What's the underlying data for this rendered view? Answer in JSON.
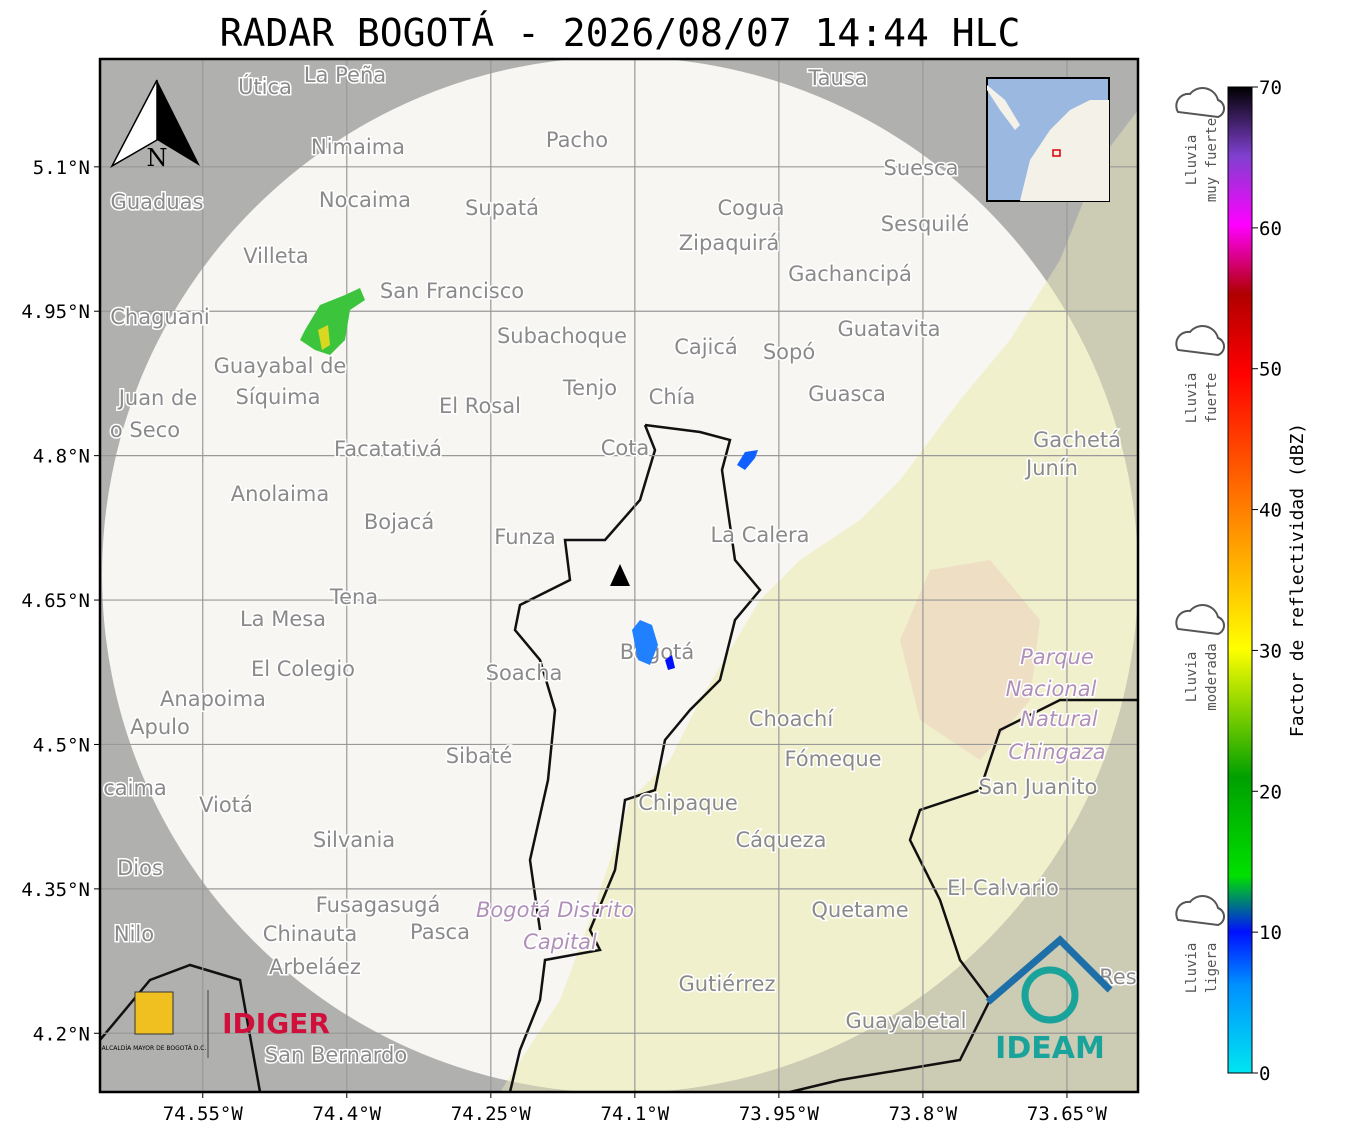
{
  "title": "RADAR BOGOTÁ - 2026/08/07 14:44 HLC",
  "map": {
    "lonlim": [
      -74.657,
      -73.576
    ],
    "latlim": [
      4.139,
      5.212
    ],
    "lat_ticks": [
      {
        "value": 5.1,
        "label": "5.1°N"
      },
      {
        "value": 4.95,
        "label": "4.95°N"
      },
      {
        "value": 4.8,
        "label": "4.8°N"
      },
      {
        "value": 4.65,
        "label": "4.65°N"
      },
      {
        "value": 4.5,
        "label": "4.5°N"
      },
      {
        "value": 4.35,
        "label": "4.35°N"
      },
      {
        "value": 4.2,
        "label": "4.2°N"
      }
    ],
    "lon_ticks": [
      {
        "value": -74.55,
        "label": "74.55°W"
      },
      {
        "value": -74.4,
        "label": "74.4°W"
      },
      {
        "value": -74.25,
        "label": "74.25°W"
      },
      {
        "value": -74.1,
        "label": "74.1°W"
      },
      {
        "value": -73.95,
        "label": "73.95°W"
      },
      {
        "value": -73.8,
        "label": "73.8°W"
      },
      {
        "value": -73.65,
        "label": "73.65°W"
      }
    ],
    "north": "N",
    "places": [
      "La Peña",
      "Útica",
      "Tausa",
      "Pacho",
      "Nimaima",
      "Guaduas",
      "Nocaima",
      "Supatá",
      "Cogua",
      "Suesca",
      "Sesquilé",
      "Zipaquirá",
      "Villeta",
      "Gachancipá",
      "San Francisco",
      "Chaguani",
      "Subachoque",
      "Guatavita",
      "Cajicá",
      "Sopó",
      "Guayabal de",
      "Síquima",
      "Tenjo",
      "Chía",
      "Guasca",
      "Juan de",
      "o Seco",
      "El Rosal",
      "Facatativá",
      "Cota",
      "Gachetá",
      "Junín",
      "Anolaima",
      "Bojacá",
      "Funza",
      "La Calera",
      "Tena",
      "La Mesa",
      "El Colegio",
      "Soacha",
      "Bogotá",
      "Parque",
      "Nacional",
      "Natural",
      "Chingaza",
      "Anapoima",
      "Apulo",
      "Choachí",
      "Fómeque",
      "Sibaté",
      "San Juanito",
      "caima",
      "Viotá",
      "Chipaque",
      "Cáqueza",
      "Silvania",
      "Dios",
      "El Calvario",
      "Fusagasugá",
      "Bogotá Distrito",
      "Capital",
      "Quetame",
      "Nilo",
      "Chinauta",
      "Pasca",
      "Arbeláez",
      "Gutiérrez",
      "Guayabetal",
      "San Bernardo",
      "Res"
    ]
  },
  "logos": {
    "alcaldia": "ALCALDÍA MAYOR DE BOGOTÁ D.C.",
    "idiger": "IDIGER",
    "ideam": "IDEAM"
  },
  "colorbar": {
    "label": "Factor de reflectividad (dBZ)",
    "lim": [
      0,
      70
    ],
    "ticks": [
      0,
      10,
      20,
      30,
      40,
      50,
      60,
      70
    ],
    "categories": [
      {
        "name": "Lluvia muy fuerte",
        "lines": [
          "Lluvia",
          "muy fuerte"
        ]
      },
      {
        "name": "Lluvia fuerte",
        "lines": [
          "Lluvia",
          "fuerte"
        ]
      },
      {
        "name": "Lluvia moderada",
        "lines": [
          "Lluvia",
          "moderada"
        ]
      },
      {
        "name": "Lluvia ligera",
        "lines": [
          "Lluvia",
          "ligera"
        ]
      }
    ]
  }
}
